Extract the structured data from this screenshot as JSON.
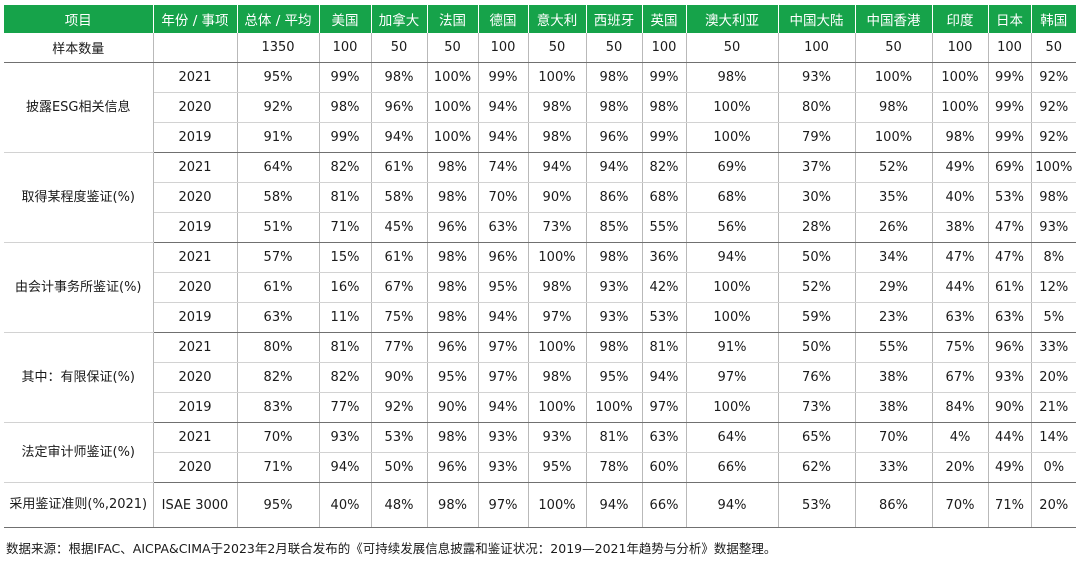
{
  "table": {
    "headers": [
      "项目",
      "年份 / 事项",
      "总体 / 平均",
      "美国",
      "加拿大",
      "法国",
      "德国",
      "意大利",
      "西班牙",
      "英国",
      "澳大利亚",
      "中国大陆",
      "中国香港",
      "印度",
      "日本",
      "韩国"
    ],
    "sample_row": {
      "label": "样本数量",
      "year": "",
      "values": [
        "1350",
        "100",
        "50",
        "50",
        "100",
        "50",
        "50",
        "100",
        "50",
        "100",
        "50",
        "100",
        "100",
        "50"
      ]
    },
    "groups": [
      {
        "label": "披露ESG相关信息",
        "rows": [
          {
            "year": "2021",
            "values": [
              "95%",
              "99%",
              "98%",
              "100%",
              "99%",
              "100%",
              "98%",
              "99%",
              "98%",
              "93%",
              "100%",
              "100%",
              "99%",
              "92%"
            ]
          },
          {
            "year": "2020",
            "values": [
              "92%",
              "98%",
              "96%",
              "100%",
              "94%",
              "98%",
              "98%",
              "98%",
              "100%",
              "80%",
              "98%",
              "100%",
              "99%",
              "92%"
            ]
          },
          {
            "year": "2019",
            "values": [
              "91%",
              "99%",
              "94%",
              "100%",
              "94%",
              "98%",
              "96%",
              "99%",
              "100%",
              "79%",
              "100%",
              "98%",
              "99%",
              "92%"
            ]
          }
        ]
      },
      {
        "label": "取得某程度鉴证(%)",
        "rows": [
          {
            "year": "2021",
            "values": [
              "64%",
              "82%",
              "61%",
              "98%",
              "74%",
              "94%",
              "94%",
              "82%",
              "69%",
              "37%",
              "52%",
              "49%",
              "69%",
              "100%"
            ]
          },
          {
            "year": "2020",
            "values": [
              "58%",
              "81%",
              "58%",
              "98%",
              "70%",
              "90%",
              "86%",
              "68%",
              "68%",
              "30%",
              "35%",
              "40%",
              "53%",
              "98%"
            ]
          },
          {
            "year": "2019",
            "values": [
              "51%",
              "71%",
              "45%",
              "96%",
              "63%",
              "73%",
              "85%",
              "55%",
              "56%",
              "28%",
              "26%",
              "38%",
              "47%",
              "93%"
            ]
          }
        ]
      },
      {
        "label": "由会计事务所鉴证(%)",
        "rows": [
          {
            "year": "2021",
            "values": [
              "57%",
              "15%",
              "61%",
              "98%",
              "96%",
              "100%",
              "98%",
              "36%",
              "94%",
              "50%",
              "34%",
              "47%",
              "47%",
              "8%"
            ]
          },
          {
            "year": "2020",
            "values": [
              "61%",
              "16%",
              "67%",
              "98%",
              "95%",
              "98%",
              "93%",
              "42%",
              "100%",
              "52%",
              "29%",
              "44%",
              "61%",
              "12%"
            ]
          },
          {
            "year": "2019",
            "values": [
              "63%",
              "11%",
              "75%",
              "98%",
              "94%",
              "97%",
              "93%",
              "53%",
              "100%",
              "59%",
              "23%",
              "63%",
              "63%",
              "5%"
            ]
          }
        ]
      },
      {
        "label": "其中：有限保证(%)",
        "rows": [
          {
            "year": "2021",
            "values": [
              "80%",
              "81%",
              "77%",
              "96%",
              "97%",
              "100%",
              "98%",
              "81%",
              "91%",
              "50%",
              "55%",
              "75%",
              "96%",
              "33%"
            ]
          },
          {
            "year": "2020",
            "values": [
              "82%",
              "82%",
              "90%",
              "95%",
              "97%",
              "98%",
              "95%",
              "94%",
              "97%",
              "76%",
              "38%",
              "67%",
              "93%",
              "20%"
            ]
          },
          {
            "year": "2019",
            "values": [
              "83%",
              "77%",
              "92%",
              "90%",
              "94%",
              "100%",
              "100%",
              "97%",
              "100%",
              "73%",
              "38%",
              "84%",
              "90%",
              "21%"
            ]
          }
        ]
      },
      {
        "label": "法定审计师鉴证(%)",
        "rows": [
          {
            "year": "2021",
            "values": [
              "70%",
              "93%",
              "53%",
              "98%",
              "93%",
              "93%",
              "81%",
              "63%",
              "64%",
              "65%",
              "70%",
              "4%",
              "44%",
              "14%"
            ]
          },
          {
            "year": "2020",
            "values": [
              "71%",
              "94%",
              "50%",
              "96%",
              "93%",
              "95%",
              "78%",
              "60%",
              "66%",
              "62%",
              "33%",
              "20%",
              "49%",
              "0%"
            ]
          }
        ]
      },
      {
        "label": "采用鉴证准则(%,2021)",
        "rows": [
          {
            "year": "ISAE 3000",
            "values": [
              "95%",
              "40%",
              "48%",
              "98%",
              "97%",
              "100%",
              "94%",
              "66%",
              "94%",
              "53%",
              "86%",
              "70%",
              "71%",
              "20%"
            ]
          }
        ]
      }
    ]
  },
  "source_note": "数据来源：根据IFAC、AICPA&CIMA于2023年2月联合发布的《可持续发展信息披露和鉴证状况：2019—2021年趋势与分析》数据整理。",
  "colors": {
    "header_bg": "#16a34a",
    "header_text": "#ffffff"
  }
}
